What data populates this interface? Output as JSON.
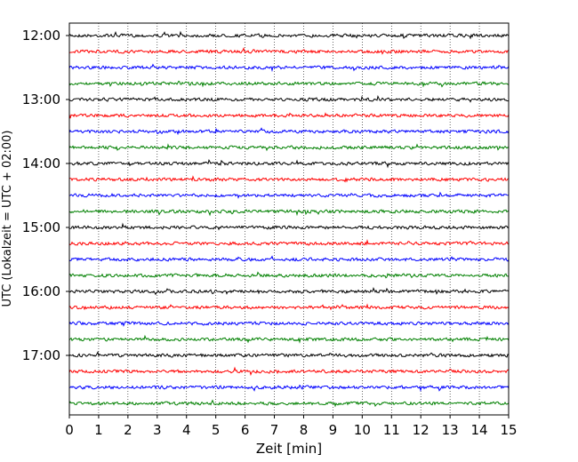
{
  "chart_data": {
    "type": "line",
    "title": "",
    "xlabel": "Zeit  [min]",
    "ylabel": "UTC (Lokalzeit = UTC + 02:00)",
    "xlim": [
      0,
      15
    ],
    "x_ticks": [
      "0",
      "1",
      "2",
      "3",
      "4",
      "5",
      "6",
      "7",
      "8",
      "9",
      "10",
      "11",
      "12",
      "13",
      "14",
      "15"
    ],
    "y_ticks": [
      "12:00",
      "13:00",
      "14:00",
      "15:00",
      "16:00",
      "17:00"
    ],
    "grid": "vertical dotted lines at every minute",
    "trace_interval_minutes": 15,
    "trace_count": 24,
    "first_trace_utc": "12:00",
    "trace_colors": [
      "#000000",
      "#ff0000",
      "#0000ff",
      "#008000"
    ]
  }
}
